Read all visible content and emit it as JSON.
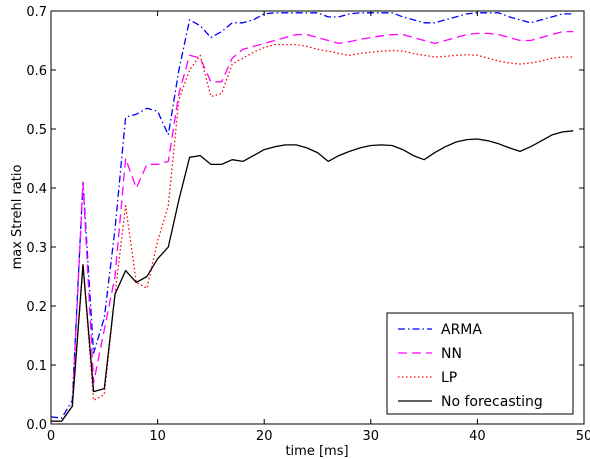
{
  "chart_data": {
    "type": "line",
    "title": "",
    "xlabel": "time [ms]",
    "ylabel": "max Strehl ratio",
    "xlim": [
      0,
      50
    ],
    "ylim": [
      0.0,
      0.7
    ],
    "xticks": [
      0,
      10,
      20,
      30,
      40,
      50
    ],
    "yticks": [
      0.0,
      0.1,
      0.2,
      0.3,
      0.4,
      0.5,
      0.6,
      0.7
    ],
    "xtick_labels": [
      "0",
      "10",
      "20",
      "30",
      "40",
      "50"
    ],
    "ytick_labels": [
      "0.0",
      "0.1",
      "0.2",
      "0.3",
      "0.4",
      "0.5",
      "0.6",
      "0.7"
    ],
    "grid": false,
    "legend_position": "bottom-right",
    "series": [
      {
        "name": "ARMA",
        "color": "#0000ff",
        "dash": "dashdot",
        "x": [
          0,
          1,
          2,
          3,
          4,
          5,
          6,
          7,
          8,
          9,
          10,
          11,
          12,
          13,
          14,
          15,
          16,
          17,
          18,
          19,
          20,
          21,
          22,
          23,
          24,
          25,
          26,
          27,
          28,
          29,
          30,
          31,
          32,
          33,
          34,
          35,
          36,
          37,
          38,
          39,
          40,
          41,
          42,
          43,
          44,
          45,
          46,
          47,
          48,
          49
        ],
        "y": [
          0.012,
          0.01,
          0.04,
          0.41,
          0.12,
          0.18,
          0.33,
          0.52,
          0.525,
          0.535,
          0.53,
          0.49,
          0.6,
          0.685,
          0.675,
          0.655,
          0.665,
          0.68,
          0.68,
          0.685,
          0.695,
          0.697,
          0.697,
          0.697,
          0.697,
          0.697,
          0.69,
          0.69,
          0.695,
          0.697,
          0.697,
          0.697,
          0.697,
          0.69,
          0.685,
          0.68,
          0.68,
          0.685,
          0.69,
          0.695,
          0.697,
          0.697,
          0.697,
          0.69,
          0.685,
          0.68,
          0.685,
          0.69,
          0.695,
          0.695
        ]
      },
      {
        "name": "NN",
        "color": "#ff00ff",
        "dash": "dashed",
        "x": [
          0,
          1,
          2,
          3,
          4,
          5,
          6,
          7,
          8,
          9,
          10,
          11,
          12,
          13,
          14,
          15,
          16,
          17,
          18,
          19,
          20,
          21,
          22,
          23,
          24,
          25,
          26,
          27,
          28,
          29,
          30,
          31,
          32,
          33,
          34,
          35,
          36,
          37,
          38,
          39,
          40,
          41,
          42,
          43,
          44,
          45,
          46,
          47,
          48,
          49
        ],
        "y": [
          0.005,
          0.005,
          0.03,
          0.41,
          0.07,
          0.16,
          0.25,
          0.45,
          0.4,
          0.44,
          0.44,
          0.445,
          0.56,
          0.625,
          0.62,
          0.58,
          0.58,
          0.62,
          0.635,
          0.64,
          0.645,
          0.65,
          0.655,
          0.66,
          0.66,
          0.655,
          0.65,
          0.645,
          0.648,
          0.652,
          0.655,
          0.658,
          0.66,
          0.66,
          0.655,
          0.65,
          0.645,
          0.65,
          0.655,
          0.66,
          0.662,
          0.662,
          0.66,
          0.655,
          0.65,
          0.65,
          0.655,
          0.66,
          0.665,
          0.665
        ]
      },
      {
        "name": "LP",
        "color": "#ff0000",
        "dash": "dotted",
        "x": [
          0,
          1,
          2,
          3,
          4,
          5,
          6,
          7,
          8,
          9,
          10,
          11,
          12,
          13,
          14,
          15,
          16,
          17,
          18,
          19,
          20,
          21,
          22,
          23,
          24,
          25,
          26,
          27,
          28,
          29,
          30,
          31,
          32,
          33,
          34,
          35,
          36,
          37,
          38,
          39,
          40,
          41,
          42,
          43,
          44,
          45,
          46,
          47,
          48,
          49
        ],
        "y": [
          0.005,
          0.005,
          0.03,
          0.27,
          0.04,
          0.05,
          0.22,
          0.37,
          0.24,
          0.23,
          0.31,
          0.37,
          0.55,
          0.6,
          0.625,
          0.555,
          0.56,
          0.61,
          0.62,
          0.63,
          0.638,
          0.643,
          0.643,
          0.643,
          0.64,
          0.635,
          0.632,
          0.628,
          0.625,
          0.628,
          0.63,
          0.632,
          0.633,
          0.632,
          0.628,
          0.625,
          0.622,
          0.623,
          0.625,
          0.626,
          0.625,
          0.62,
          0.615,
          0.612,
          0.61,
          0.612,
          0.615,
          0.62,
          0.622,
          0.622
        ]
      },
      {
        "name": "No forecasting",
        "color": "#000000",
        "dash": "solid",
        "x": [
          0,
          1,
          2,
          3,
          4,
          5,
          6,
          7,
          8,
          9,
          10,
          11,
          12,
          13,
          14,
          15,
          16,
          17,
          18,
          19,
          20,
          21,
          22,
          23,
          24,
          25,
          26,
          27,
          28,
          29,
          30,
          31,
          32,
          33,
          34,
          35,
          36,
          37,
          38,
          39,
          40,
          41,
          42,
          43,
          44,
          45,
          46,
          47,
          48,
          49
        ],
        "y": [
          0.005,
          0.005,
          0.03,
          0.27,
          0.055,
          0.06,
          0.22,
          0.26,
          0.24,
          0.25,
          0.28,
          0.3,
          0.38,
          0.452,
          0.455,
          0.44,
          0.44,
          0.448,
          0.445,
          0.455,
          0.465,
          0.47,
          0.473,
          0.473,
          0.468,
          0.46,
          0.445,
          0.455,
          0.462,
          0.468,
          0.472,
          0.473,
          0.472,
          0.465,
          0.455,
          0.448,
          0.46,
          0.47,
          0.478,
          0.482,
          0.483,
          0.48,
          0.475,
          0.468,
          0.462,
          0.47,
          0.48,
          0.49,
          0.495,
          0.497
        ]
      }
    ]
  }
}
